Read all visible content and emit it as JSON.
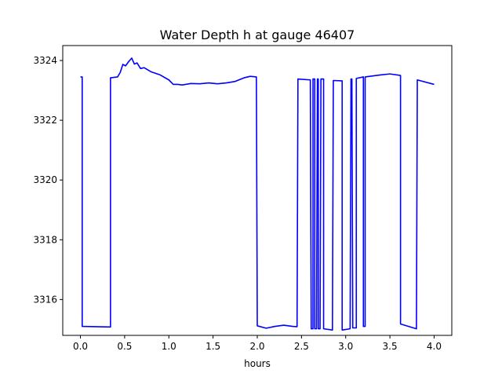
{
  "chart_data": {
    "type": "line",
    "title": "Water Depth h at gauge 46407",
    "xlabel": "hours",
    "ylabel": "",
    "xlim": [
      -0.2,
      4.2
    ],
    "ylim": [
      3314.8,
      3324.5
    ],
    "xticks": [
      0.0,
      0.5,
      1.0,
      1.5,
      2.0,
      2.5,
      3.0,
      3.5,
      4.0
    ],
    "xtick_labels": [
      "0.0",
      "0.5",
      "1.0",
      "1.5",
      "2.0",
      "2.5",
      "3.0",
      "3.5",
      "4.0"
    ],
    "yticks": [
      3316,
      3318,
      3320,
      3322,
      3324
    ],
    "ytick_labels": [
      "3316",
      "3318",
      "3320",
      "3322",
      "3324"
    ],
    "grid": false,
    "series": [
      {
        "color": "#0000ff",
        "points": [
          [
            0.0,
            3323.45
          ],
          [
            0.02,
            3323.45
          ],
          [
            0.02,
            3315.1
          ],
          [
            0.34,
            3315.08
          ],
          [
            0.34,
            3323.42
          ],
          [
            0.42,
            3323.45
          ],
          [
            0.45,
            3323.6
          ],
          [
            0.48,
            3323.87
          ],
          [
            0.51,
            3323.82
          ],
          [
            0.55,
            3323.98
          ],
          [
            0.58,
            3324.08
          ],
          [
            0.61,
            3323.88
          ],
          [
            0.64,
            3323.92
          ],
          [
            0.68,
            3323.73
          ],
          [
            0.72,
            3323.76
          ],
          [
            0.8,
            3323.62
          ],
          [
            0.9,
            3323.52
          ],
          [
            1.0,
            3323.35
          ],
          [
            1.05,
            3323.2
          ],
          [
            1.1,
            3323.2
          ],
          [
            1.15,
            3323.18
          ],
          [
            1.25,
            3323.23
          ],
          [
            1.35,
            3323.22
          ],
          [
            1.45,
            3323.25
          ],
          [
            1.55,
            3323.22
          ],
          [
            1.65,
            3323.25
          ],
          [
            1.75,
            3323.3
          ],
          [
            1.85,
            3323.42
          ],
          [
            1.92,
            3323.47
          ],
          [
            1.99,
            3323.45
          ],
          [
            2.0,
            3315.12
          ],
          [
            2.1,
            3315.04
          ],
          [
            2.2,
            3315.1
          ],
          [
            2.3,
            3315.14
          ],
          [
            2.4,
            3315.1
          ],
          [
            2.45,
            3315.09
          ],
          [
            2.46,
            3323.38
          ],
          [
            2.6,
            3323.35
          ],
          [
            2.61,
            3315.02
          ],
          [
            2.63,
            3315.02
          ],
          [
            2.63,
            3323.38
          ],
          [
            2.65,
            3323.38
          ],
          [
            2.65,
            3315.02
          ],
          [
            2.67,
            3315.02
          ],
          [
            2.68,
            3323.38
          ],
          [
            2.69,
            3323.38
          ],
          [
            2.69,
            3315.02
          ],
          [
            2.71,
            3315.02
          ],
          [
            2.72,
            3323.38
          ],
          [
            2.75,
            3323.38
          ],
          [
            2.75,
            3315.02
          ],
          [
            2.85,
            3314.98
          ],
          [
            2.86,
            3323.33
          ],
          [
            2.96,
            3323.32
          ],
          [
            2.96,
            3314.98
          ],
          [
            3.05,
            3315.02
          ],
          [
            3.06,
            3323.38
          ],
          [
            3.07,
            3323.38
          ],
          [
            3.08,
            3315.05
          ],
          [
            3.12,
            3315.05
          ],
          [
            3.12,
            3323.4
          ],
          [
            3.2,
            3323.45
          ],
          [
            3.2,
            3315.1
          ],
          [
            3.22,
            3315.1
          ],
          [
            3.22,
            3323.45
          ],
          [
            3.4,
            3323.52
          ],
          [
            3.5,
            3323.55
          ],
          [
            3.62,
            3323.5
          ],
          [
            3.62,
            3315.18
          ],
          [
            3.8,
            3315.02
          ],
          [
            3.81,
            3323.35
          ],
          [
            4.0,
            3323.2
          ]
        ]
      }
    ]
  }
}
